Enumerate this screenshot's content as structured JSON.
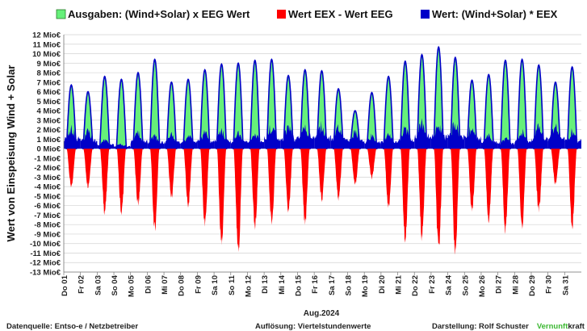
{
  "chart_data": {
    "type": "area",
    "ylabel": "Wert von Einspeisung Wind + Solar",
    "xlabel": "Aug.2024",
    "ylim": [
      -13,
      12
    ],
    "yticks": [
      "12 Mio€",
      "11 Mio€",
      "10 Mio€",
      "9 Mio€",
      "8 Mio€",
      "7 Mio€",
      "6 Mio€",
      "5 Mio€",
      "4 Mio€",
      "3 Mio€",
      "2 Mio€",
      "1 Mio€",
      "0 Mio€",
      "-1 Mio€",
      "-2 Mio€",
      "-3 Mio€",
      "-4 Mio€",
      "-5 Mio€",
      "-6 Mio€",
      "-7 Mio€",
      "-8 Mio€",
      "-9 Mio€",
      "-10 Mio€",
      "-11 Mio€",
      "-12 Mio€",
      "-13 Mio€"
    ],
    "categories": [
      "Do 01",
      "Fr 02",
      "Sa 03",
      "So 04",
      "Mo 05",
      "Di 06",
      "Mi 07",
      "Do 08",
      "Fr 09",
      "Sa 10",
      "So 11",
      "Mo 12",
      "Di 13",
      "Mi 14",
      "Do 15",
      "Fr 16",
      "Sa 17",
      "So 18",
      "Mo 19",
      "Di 20",
      "Mi 21",
      "Do 22",
      "Fr 23",
      "Sa 24",
      "So 25",
      "Mo 26",
      "Di 27",
      "Mi 28",
      "Do 29",
      "Fr 30",
      "Sa 31"
    ],
    "grid": true,
    "legend_position": "top",
    "series": [
      {
        "name": "Ausgaben: (Wind+Solar) x EEG Wert",
        "color": "#66f07a",
        "values": [
          6.7,
          6.0,
          7.6,
          7.3,
          8.0,
          9.4,
          7.0,
          7.3,
          8.3,
          8.9,
          9.0,
          9.3,
          9.4,
          7.7,
          8.3,
          8.2,
          6.3,
          4.0,
          5.9,
          7.6,
          9.2,
          9.9,
          10.7,
          9.6,
          7.2,
          7.8,
          9.3,
          9.4,
          8.8,
          7.0,
          8.6
        ]
      },
      {
        "name": "Wert EEX - Wert EEG",
        "color": "#ff0000",
        "values": [
          -4.4,
          -4.2,
          -7.1,
          -7.2,
          -6.3,
          -9.1,
          -5.5,
          -6.4,
          -8.6,
          -10.8,
          -11.7,
          -8.8,
          -8.3,
          -7.0,
          -8.3,
          -5.7,
          -5.6,
          -4.0,
          -3.3,
          -6.6,
          -10.2,
          -9.9,
          -11.4,
          -11.7,
          -7.0,
          -8.0,
          -9.0,
          -8.8,
          -7.0,
          -4.0,
          -8.6
        ]
      },
      {
        "name": "Wert: (Wind+Solar) * EEX",
        "color": "#0000c8",
        "values": [
          2.3,
          1.8,
          0.9,
          0.5,
          1.6,
          1.4,
          1.4,
          1.4,
          1.7,
          1.8,
          1.5,
          1.6,
          2.4,
          2.2,
          2.4,
          2.4,
          2.1,
          1.7,
          1.4,
          1.4,
          2.2,
          2.8,
          2.7,
          2.7,
          2.5,
          1.4,
          1.2,
          1.8,
          2.4,
          2.3,
          1.8
        ]
      }
    ]
  },
  "footer": {
    "source": "Datenquelle:  Entso-e  / Netzbetreiber",
    "resolution": "Auflösung: Viertelstundenwerte",
    "author": "Darstellung:  Rolf Schuster",
    "brand_a": "Vernunft",
    "brand_b": "kraft",
    "brand_color": "#3cb832"
  }
}
